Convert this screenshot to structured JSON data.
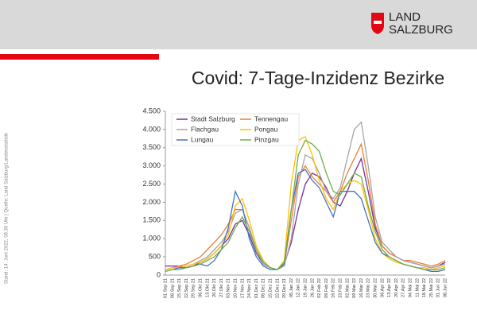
{
  "slide": {
    "logo": [
      "LAND",
      "SALZBURG"
    ],
    "title": "Covid: 7-Tage-Inzidenz Bezirke",
    "source": "Stand: 14. Juni 2022, 08.30 Uhr | Quelle: Land Salzburg/Landesstatistik"
  },
  "chart_data": {
    "type": "line",
    "categories": [
      "01.Sep 21",
      "08.Sep 21",
      "15.Sep 21",
      "22.Sep 21",
      "29.Sep 21",
      "06.Okt 21",
      "13.Okt 21",
      "20.Okt 21",
      "27.Okt 21",
      "03.Nov 21",
      "10.Nov 21",
      "17.Nov 21",
      "24.Nov 21",
      "01.Dez 21",
      "08.Dez 21",
      "15.Dez 21",
      "22.Dez 21",
      "29.Dez 21",
      "05.Jan 22",
      "12.Jan 22",
      "19.Jan 22",
      "26.Jan 22",
      "02.Feb 22",
      "09.Feb 22",
      "16.Feb 22",
      "23.Feb 22",
      "02.Mar 22",
      "09.Mar 22",
      "16.Mar 22",
      "23.Mar 22",
      "30.Mar 22",
      "06.Apr 22",
      "13.Apr 22",
      "20.Apr 22",
      "27.Apr 22",
      "04.Mai 22",
      "11.Mai 22",
      "18.Mai 22",
      "25.Mai 22",
      "01.Jun 22",
      "08.Jun 22"
    ],
    "series": [
      {
        "name": "Stadt Salzburg",
        "color": "#7030a0",
        "values": [
          250,
          250,
          250,
          200,
          250,
          350,
          450,
          600,
          800,
          1000,
          1400,
          1500,
          1100,
          600,
          300,
          200,
          150,
          300,
          900,
          1800,
          2500,
          2800,
          2700,
          2400,
          2000,
          1900,
          2300,
          2800,
          3200,
          2300,
          1300,
          800,
          600,
          500,
          400,
          350,
          300,
          250,
          200,
          250,
          350
        ]
      },
      {
        "name": "Tennengau",
        "color": "#ed7d31",
        "values": [
          150,
          200,
          250,
          300,
          400,
          500,
          700,
          900,
          1100,
          1400,
          1800,
          1800,
          1300,
          700,
          350,
          200,
          150,
          300,
          1500,
          2700,
          3000,
          2700,
          2500,
          2300,
          2000,
          2300,
          2800,
          3200,
          3600,
          2600,
          1400,
          800,
          600,
          500,
          400,
          400,
          350,
          300,
          250,
          300,
          400
        ]
      },
      {
        "name": "Flachgau",
        "color": "#a5a5a5",
        "values": [
          150,
          200,
          200,
          250,
          300,
          400,
          500,
          700,
          900,
          1200,
          1700,
          1800,
          1300,
          700,
          300,
          200,
          150,
          250,
          1000,
          2500,
          3300,
          3200,
          2800,
          2300,
          2100,
          2400,
          3200,
          4000,
          4200,
          3000,
          1600,
          900,
          700,
          500,
          400,
          350,
          300,
          250,
          200,
          250,
          300
        ]
      },
      {
        "name": "Pongau",
        "color": "#ffc000",
        "values": [
          150,
          200,
          200,
          250,
          300,
          350,
          450,
          600,
          800,
          1100,
          1900,
          2100,
          1500,
          800,
          400,
          200,
          150,
          400,
          2500,
          3700,
          3800,
          3300,
          2600,
          2100,
          1800,
          2300,
          2500,
          2600,
          2500,
          1800,
          1000,
          600,
          450,
          350,
          300,
          250,
          200,
          200,
          150,
          200,
          250
        ]
      },
      {
        "name": "Lungau",
        "color": "#4472c4",
        "values": [
          100,
          150,
          200,
          200,
          250,
          300,
          250,
          400,
          700,
          1300,
          2300,
          1900,
          1000,
          500,
          250,
          150,
          150,
          300,
          1800,
          2800,
          2900,
          2600,
          2400,
          2000,
          1600,
          2300,
          2300,
          2300,
          2100,
          1500,
          900,
          600,
          500,
          400,
          300,
          250,
          200,
          150,
          100,
          100,
          150
        ]
      },
      {
        "name": "Pinzgau",
        "color": "#70ad47",
        "values": [
          100,
          150,
          150,
          200,
          250,
          300,
          400,
          500,
          700,
          900,
          1300,
          1600,
          1200,
          700,
          350,
          200,
          150,
          350,
          1800,
          3300,
          3700,
          3600,
          3400,
          2800,
          2300,
          2200,
          2500,
          2800,
          2700,
          1900,
          1200,
          700,
          500,
          400,
          300,
          250,
          200,
          150,
          150,
          150,
          200
        ]
      }
    ],
    "ylim": [
      0,
      4500
    ],
    "yticks": [
      0,
      500,
      {
        "value": 1000,
        "label": "1.000"
      },
      {
        "value": 1500,
        "label": "1.500"
      },
      {
        "value": 2000,
        "label": "2.000"
      },
      {
        "value": 2500,
        "label": "2.500"
      },
      {
        "value": 3000,
        "label": "3.000"
      },
      {
        "value": 3500,
        "label": "3.500"
      },
      {
        "value": 4000,
        "label": "4.000"
      },
      {
        "value": 4500,
        "label": "4.500"
      }
    ],
    "grid": false
  }
}
